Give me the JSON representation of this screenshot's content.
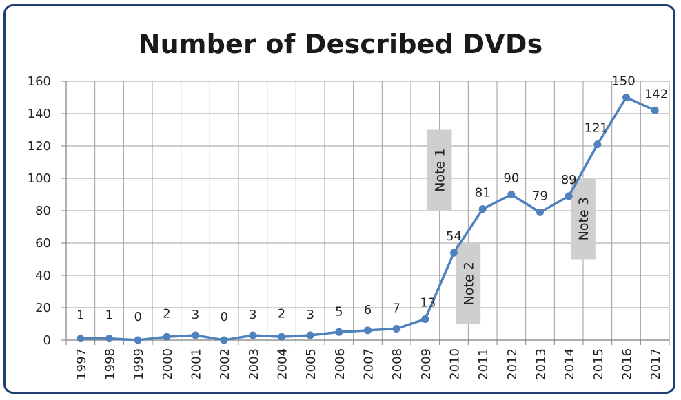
{
  "chart_data": {
    "type": "line",
    "title": "Number of Described DVDs",
    "xlabel": "",
    "ylabel": "",
    "categories": [
      "1997",
      "1998",
      "1999",
      "2000",
      "2001",
      "2002",
      "2003",
      "2004",
      "2005",
      "2006",
      "2007",
      "2008",
      "2009",
      "2010",
      "2011",
      "2012",
      "2013",
      "2014",
      "2015",
      "2016",
      "2017"
    ],
    "series": [
      {
        "values": [
          1,
          1,
          0,
          2,
          3,
          0,
          3,
          2,
          3,
          5,
          6,
          7,
          13,
          54,
          81,
          90,
          79,
          89,
          121,
          150,
          142
        ]
      }
    ],
    "data_labels": [
      "1",
      "1",
      "0",
      "2",
      "3",
      "0",
      "3",
      "2",
      "3",
      "5",
      "6",
      "7",
      "13",
      "54",
      "81",
      "90",
      "79",
      "89",
      "121",
      "150",
      "142"
    ],
    "ylim": [
      0,
      160
    ],
    "yticks": [
      0,
      20,
      40,
      60,
      80,
      100,
      120,
      140,
      160
    ],
    "grid": true,
    "legend": "none",
    "line_color": "#4f81bd",
    "annotations": [
      {
        "text": "Note 1",
        "x_from": "2009",
        "x_to": "2010",
        "y_from": 80,
        "y_to": 130
      },
      {
        "text": "Note 2",
        "x_from": "2010",
        "x_to": "2011",
        "y_from": 10,
        "y_to": 60
      },
      {
        "text": "Note 3",
        "x_from": "2014",
        "x_to": "2015",
        "y_from": 50,
        "y_to": 100
      }
    ]
  }
}
